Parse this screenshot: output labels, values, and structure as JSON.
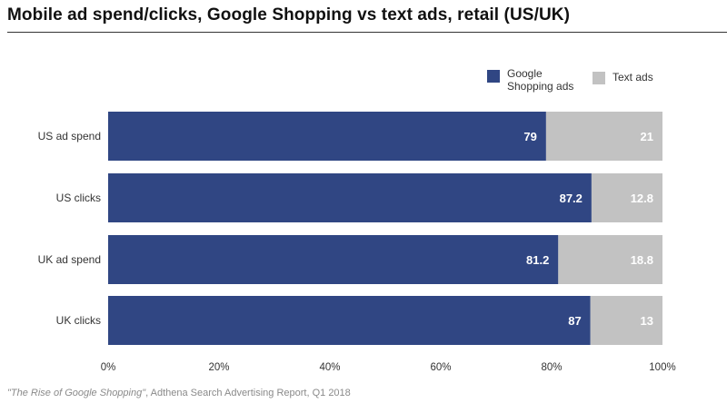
{
  "title": "Mobile ad spend/clicks, Google Shopping vs text ads, retail (US/UK)",
  "source": {
    "italic": "\"The Rise of Google Shopping\"",
    "rest": ", Adthena Search Advertising Report, Q1 2018"
  },
  "colors": {
    "google": "#304683",
    "text": "#c2c2c2"
  },
  "legend": {
    "google_line1": "Google",
    "google_line2": "Shopping ads",
    "text": "Text ads"
  },
  "chart_data": {
    "type": "bar",
    "orientation": "horizontal",
    "stacked": true,
    "categories": [
      "US ad spend",
      "US clicks",
      "UK ad spend",
      "UK clicks"
    ],
    "series": [
      {
        "name": "Google Shopping ads",
        "values": [
          79,
          87.2,
          81.2,
          87
        ],
        "labels": [
          "79",
          "87.2",
          "81.2",
          "87"
        ]
      },
      {
        "name": "Text ads",
        "values": [
          21,
          12.8,
          18.8,
          13
        ],
        "labels": [
          "21",
          "12.8",
          "18.8",
          "13"
        ]
      }
    ],
    "xlim": [
      0,
      100
    ],
    "xticks": [
      "0%",
      "20%",
      "40%",
      "60%",
      "80%",
      "100%"
    ],
    "legend_position": "top-right",
    "grid": false
  }
}
